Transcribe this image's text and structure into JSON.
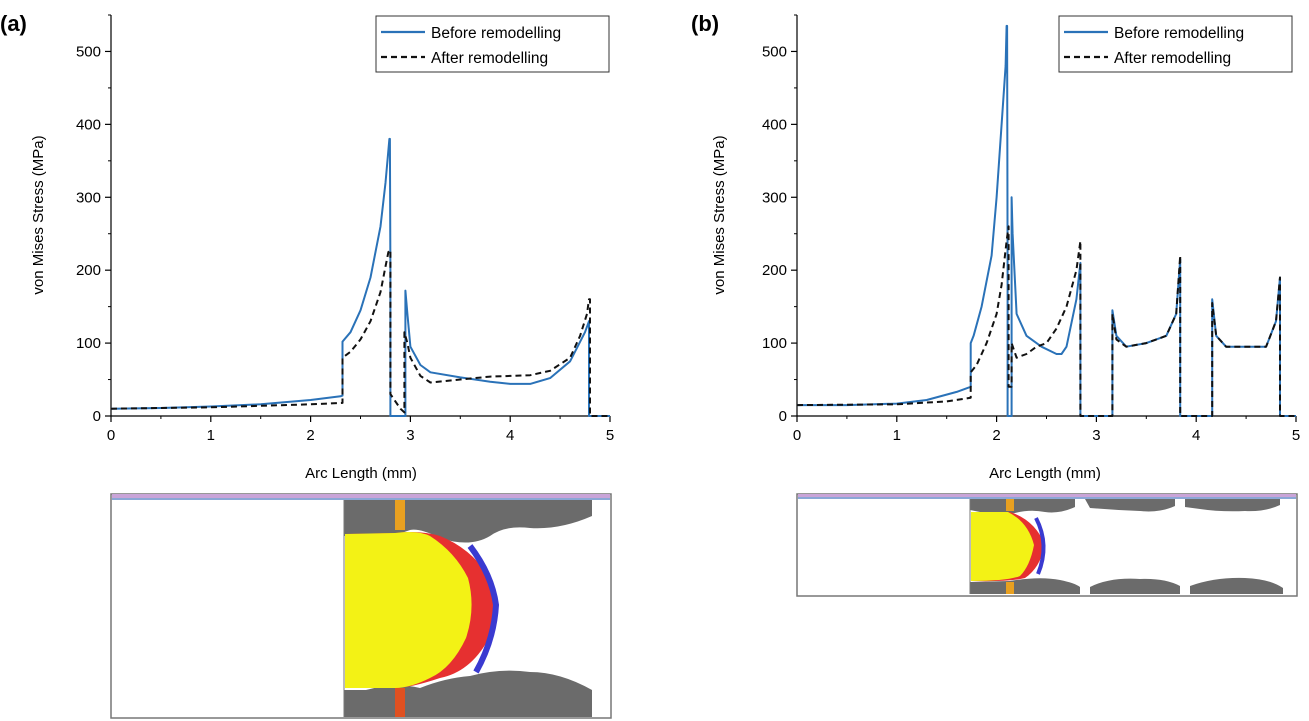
{
  "chart_data": [
    {
      "type": "line",
      "panel_label": "(a)",
      "xlabel": "Arc Length (mm)",
      "ylabel": "von Mises Stress (MPa)",
      "xlim": [
        0,
        5
      ],
      "ylim": [
        0,
        550
      ],
      "xticks": [
        "0",
        "1",
        "2",
        "3",
        "4",
        "5"
      ],
      "yticks": [
        "0",
        "100",
        "200",
        "300",
        "400",
        "500"
      ],
      "grid": false,
      "legend_position": "top-right",
      "series": [
        {
          "name": "Before remodelling",
          "color": "#2a72b8",
          "dash": "solid",
          "x": [
            0,
            0.5,
            1.0,
            1.5,
            2.0,
            2.3,
            2.32,
            2.32,
            2.4,
            2.5,
            2.6,
            2.7,
            2.75,
            2.79,
            2.795,
            2.8,
            2.8,
            2.95,
            2.95,
            2.97,
            3.0,
            3.1,
            3.2,
            3.5,
            3.8,
            4.0,
            4.2,
            4.4,
            4.6,
            4.75,
            4.79,
            4.79,
            4.8,
            5.0
          ],
          "y": [
            10,
            11,
            13,
            16,
            22,
            27,
            28,
            102,
            115,
            145,
            190,
            260,
            320,
            380,
            380,
            200,
            0,
            0,
            172,
            140,
            95,
            70,
            60,
            53,
            47,
            44,
            44,
            52,
            75,
            115,
            130,
            0,
            0,
            0
          ]
        },
        {
          "name": "After remodelling",
          "color": "#111111",
          "dash": "dashed",
          "x": [
            0,
            1.0,
            2.0,
            2.32,
            2.32,
            2.4,
            2.5,
            2.6,
            2.7,
            2.75,
            2.78,
            2.8,
            2.8,
            2.85,
            2.9,
            2.94,
            2.94,
            2.97,
            3.0,
            3.1,
            3.2,
            3.5,
            3.8,
            4.0,
            4.2,
            4.4,
            4.6,
            4.7,
            4.77,
            4.79,
            4.8,
            4.8,
            5.0
          ],
          "y": [
            10,
            12,
            16,
            18,
            80,
            88,
            105,
            130,
            170,
            205,
            225,
            228,
            30,
            20,
            10,
            5,
            115,
            100,
            80,
            55,
            46,
            50,
            54,
            55,
            56,
            62,
            80,
            110,
            140,
            160,
            160,
            0,
            0
          ]
        }
      ]
    },
    {
      "type": "line",
      "panel_label": "(b)",
      "xlabel": "Arc Length (mm)",
      "ylabel": "von Mises Stress (MPa)",
      "xlim": [
        0,
        5
      ],
      "ylim": [
        0,
        550
      ],
      "xticks": [
        "0",
        "1",
        "2",
        "3",
        "4",
        "5"
      ],
      "yticks": [
        "0",
        "100",
        "200",
        "300",
        "400",
        "500"
      ],
      "grid": false,
      "legend_position": "top-right",
      "series": [
        {
          "name": "Before remodelling",
          "color": "#2a72b8",
          "dash": "solid",
          "x": [
            0,
            0.5,
            1.0,
            1.3,
            1.6,
            1.74,
            1.74,
            1.77,
            1.85,
            1.95,
            2.0,
            2.05,
            2.09,
            2.1,
            2.105,
            2.11,
            2.11,
            2.15,
            2.15,
            2.16,
            2.2,
            2.3,
            2.45,
            2.6,
            2.65,
            2.7,
            2.8,
            2.84,
            2.84,
            3.16,
            3.16,
            3.2,
            3.3,
            3.5,
            3.7,
            3.8,
            3.84,
            3.84,
            4.16,
            4.16,
            4.2,
            4.3,
            4.5,
            4.7,
            4.8,
            4.84,
            4.84,
            5.0
          ],
          "y": [
            15,
            15,
            17,
            22,
            33,
            40,
            100,
            110,
            150,
            220,
            300,
            400,
            480,
            535,
            535,
            200,
            0,
            0,
            300,
            250,
            140,
            110,
            95,
            85,
            85,
            95,
            160,
            210,
            0,
            0,
            145,
            110,
            95,
            100,
            110,
            140,
            215,
            0,
            0,
            160,
            110,
            95,
            95,
            95,
            130,
            190,
            0,
            0
          ]
        },
        {
          "name": "After remodelling",
          "color": "#111111",
          "dash": "dashed",
          "x": [
            0,
            1.0,
            1.5,
            1.74,
            1.74,
            1.8,
            1.9,
            2.0,
            2.05,
            2.1,
            2.12,
            2.12,
            2.15,
            2.15,
            2.2,
            2.3,
            2.4,
            2.5,
            2.6,
            2.7,
            2.8,
            2.84,
            2.84,
            3.16,
            3.16,
            3.2,
            3.3,
            3.5,
            3.7,
            3.8,
            3.84,
            3.84,
            4.16,
            4.16,
            4.2,
            4.3,
            4.5,
            4.7,
            4.8,
            4.84,
            4.84,
            5.0
          ],
          "y": [
            15,
            16,
            20,
            25,
            60,
            70,
            100,
            140,
            180,
            240,
            260,
            40,
            40,
            100,
            80,
            85,
            95,
            100,
            120,
            150,
            200,
            240,
            0,
            0,
            140,
            105,
            95,
            100,
            110,
            140,
            220,
            0,
            0,
            155,
            110,
            95,
            95,
            95,
            130,
            190,
            0,
            0
          ]
        }
      ]
    }
  ]
}
